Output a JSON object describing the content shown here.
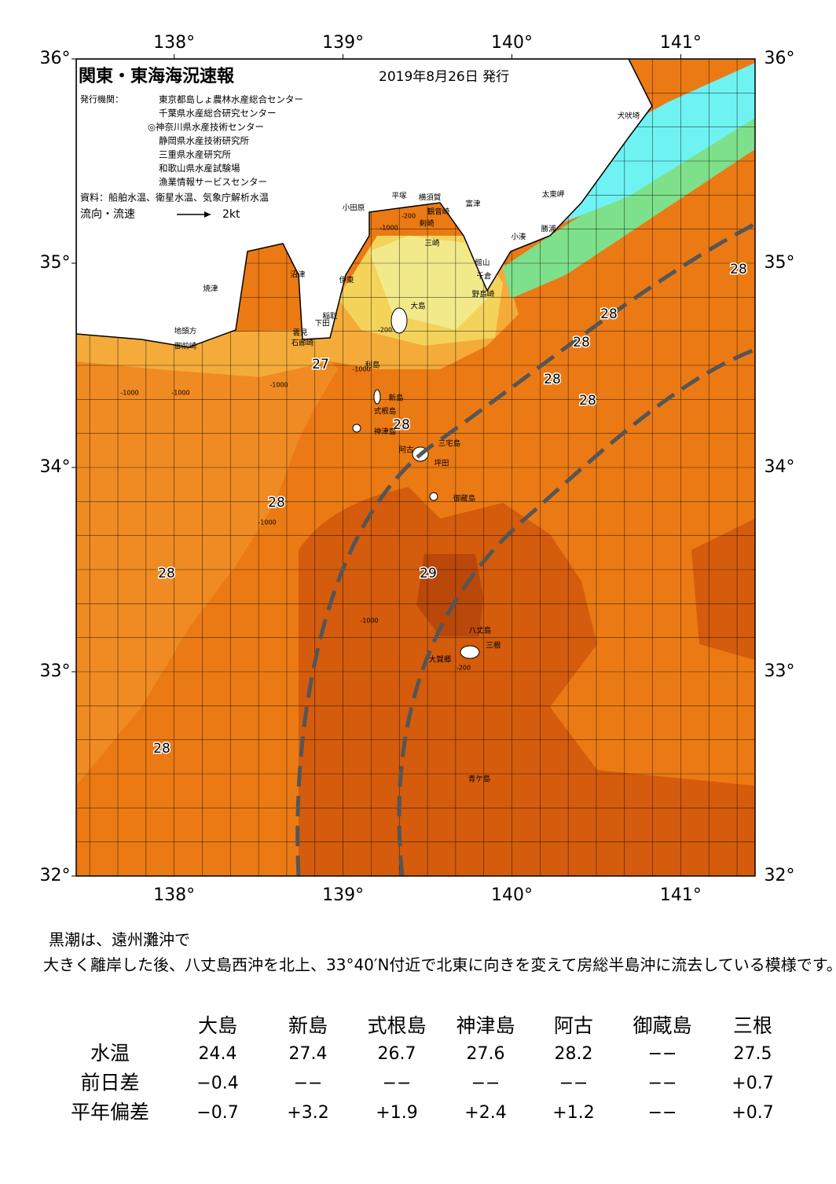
{
  "header": {
    "title": "関東・東海海況速報",
    "date": "2019年8月26日 発行"
  },
  "publisher": {
    "label": "発行機関：",
    "names": [
      "東京都島しょ農林水産総合センター",
      "千葉県水産総合研究センター",
      "◎神奈川県水産技術センター",
      "静岡県水産技術研究所",
      "三重県水産研究所",
      "和歌山県水産試験場",
      "漁業情報サービスセンター"
    ]
  },
  "source": "資料：船舶水温、衛星水温、気象庁解析水温",
  "legend": {
    "label": "流向・流速",
    "speed": "2kt"
  },
  "map": {
    "lonlim": [
      137.42,
      141.44
    ],
    "latlim": [
      32,
      36
    ],
    "lon_ticks": [
      {
        "value": 138,
        "label": "138°"
      },
      {
        "value": 139,
        "label": "139°"
      },
      {
        "value": 140,
        "label": "140°"
      },
      {
        "value": 141,
        "label": "141°"
      }
    ],
    "lat_ticks": [
      {
        "value": 32,
        "label": "32°"
      },
      {
        "value": 33,
        "label": "33°"
      },
      {
        "value": 34,
        "label": "34°"
      },
      {
        "value": 35,
        "label": "35°"
      },
      {
        "value": 36,
        "label": "36°"
      }
    ],
    "temperature_labels": [
      "28",
      "28",
      "28",
      "28",
      "28",
      "27",
      "28",
      "28",
      "28",
      "29",
      "28"
    ],
    "places": [
      "小田原",
      "平塚",
      "横須賀",
      "富津",
      "観音崎",
      "剣崎",
      "三崎",
      "館山",
      "千倉",
      "野島崎",
      "大島",
      "伊東",
      "沼津",
      "焼津",
      "稲取",
      "下田",
      "雲見",
      "石廊崎",
      "地頭方",
      "御前崎",
      "利島",
      "新島",
      "式根島",
      "神津島",
      "三宅島",
      "阿古",
      "坪田",
      "御蔵島",
      "八丈島",
      "三根",
      "大賀郷",
      "青ケ島",
      "犬吠埼",
      "太東岬",
      "小湊",
      "勝浦"
    ],
    "depth_labels": [
      "-1000",
      "-200",
      "-1000",
      "-200",
      "-1000",
      "-1000",
      "-1000",
      "-1000",
      "-200",
      "-1000"
    ]
  },
  "comment": "黒潮は、遠州灘沖で大きく離岸した後、八丈島西沖を北上、33°40′N付近で北東に向きを変えて房総半島沖に流去している模様です。",
  "table": {
    "columns": [
      "大島",
      "新島",
      "式根島",
      "神津島",
      "阿古",
      "御蔵島",
      "三根"
    ],
    "rows": [
      {
        "label": "水温",
        "values": [
          "24.4",
          "27.4",
          "26.7",
          "27.6",
          "28.2",
          "−−",
          "27.5"
        ]
      },
      {
        "label": "前日差",
        "values": [
          "−0.4",
          "−−",
          "−−",
          "−−",
          "−−",
          "−−",
          "+0.7"
        ]
      },
      {
        "label": "平年偏差",
        "values": [
          "−0.7",
          "+3.2",
          "+1.9",
          "+2.4",
          "+1.2",
          "−−",
          "+0.7"
        ]
      }
    ]
  }
}
